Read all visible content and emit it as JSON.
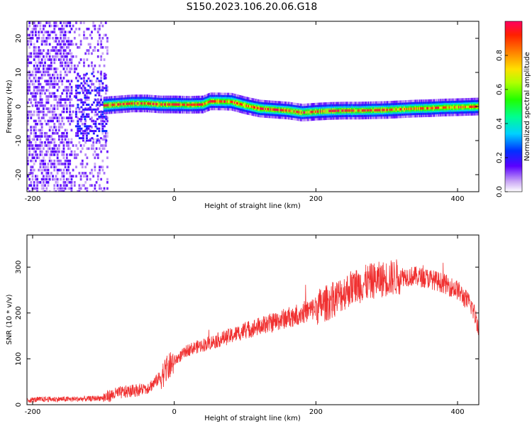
{
  "title": "S150.2023.106.20.06.G18",
  "chart_data": [
    {
      "type": "heatmap",
      "panel": "spectrogram",
      "xlabel": "Height of straight line (km)",
      "ylabel": "Frequency (Hz)",
      "xlim": [
        -208,
        430
      ],
      "ylim": [
        -25,
        25
      ],
      "xticks": [
        -200,
        0,
        200,
        400
      ],
      "yticks": [
        -20,
        -10,
        0,
        10,
        20
      ],
      "colorbar": {
        "label": "Normalized spectral amplitude",
        "range": [
          0,
          1
        ],
        "ticks": [
          0.0,
          0.2,
          0.4,
          0.6,
          0.8
        ]
      },
      "ridge": {
        "x": [
          -100,
          -80,
          -60,
          -40,
          -20,
          0,
          20,
          40,
          50,
          60,
          80,
          100,
          120,
          140,
          160,
          180,
          200,
          220,
          240,
          260,
          280,
          300,
          320,
          340,
          360,
          380,
          400,
          430
        ],
        "freq": [
          0.3,
          0.6,
          0.9,
          0.9,
          0.6,
          0.6,
          0.5,
          0.6,
          1.5,
          1.5,
          1.4,
          0.3,
          -0.6,
          -0.9,
          -1.2,
          -1.8,
          -1.5,
          -1.3,
          -1.2,
          -1.2,
          -1.1,
          -1.0,
          -0.8,
          -0.6,
          -0.5,
          -0.3,
          -0.2,
          0.0
        ]
      }
    },
    {
      "type": "line",
      "panel": "snr",
      "xlabel": "Height of straight line (km)",
      "ylabel": "SNR (10 * v/v)",
      "xlim": [
        -208,
        430
      ],
      "ylim": [
        0,
        370
      ],
      "xticks": [
        -200,
        0,
        200,
        400
      ],
      "yticks": [
        0,
        100,
        200,
        300
      ],
      "series": [
        {
          "name": "SNR",
          "color": "#f03030",
          "x": [
            -208,
            -180,
            -150,
            -120,
            -100,
            -80,
            -60,
            -40,
            -30,
            -20,
            0,
            20,
            50,
            80,
            100,
            130,
            160,
            190,
            220,
            250,
            280,
            300,
            320,
            340,
            360,
            380,
            400,
            420,
            430
          ],
          "y": [
            10,
            12,
            12,
            13,
            15,
            25,
            30,
            35,
            45,
            60,
            95,
            120,
            135,
            150,
            162,
            175,
            190,
            205,
            225,
            255,
            270,
            275,
            280,
            280,
            275,
            265,
            250,
            215,
            170
          ]
        }
      ]
    }
  ]
}
